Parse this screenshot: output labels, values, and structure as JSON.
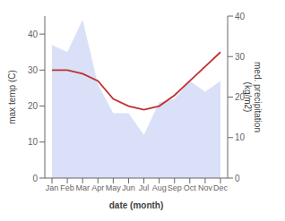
{
  "chart_data": {
    "type": "line",
    "categories": [
      "Jan",
      "Feb",
      "Mar",
      "Apr",
      "May",
      "Jun",
      "Jul",
      "Aug",
      "Sep",
      "Oct",
      "Nov",
      "Dec"
    ],
    "series": [
      {
        "type": "area",
        "color": "#aabbee",
        "values": [
          37,
          35,
          44,
          26,
          18,
          18,
          12,
          21,
          22,
          27,
          24,
          27
        ]
      },
      {
        "type": "line",
        "color": "#c03030",
        "values": [
          30,
          30,
          29,
          27,
          22,
          20,
          19,
          20,
          23,
          27,
          31,
          35
        ]
      }
    ],
    "xlabel": "date (month)",
    "ylabel": "max temp (C)",
    "y2label": "med. precipitation\n(kg/m2)",
    "ylim": [
      0,
      45
    ],
    "yticks": [
      0,
      10,
      20,
      30,
      40
    ],
    "y2lim": [
      0,
      40
    ],
    "y2ticks": [
      0,
      10,
      20,
      30,
      40
    ],
    "grid": false
  }
}
